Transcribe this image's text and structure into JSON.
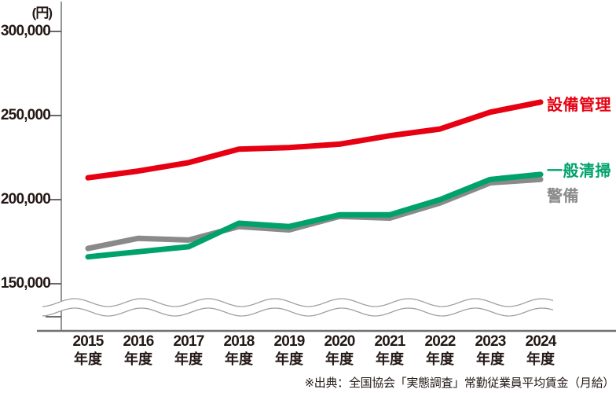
{
  "chart": {
    "unit_label": "(円)",
    "source_note": "※出典：全国協会「実態調査」常勤従業員平均賃金（月給）"
  },
  "chart_data": {
    "type": "line",
    "title": "",
    "ylabel": "円",
    "xlabel": "年度",
    "categories": [
      "2015",
      "2016",
      "2017",
      "2018",
      "2019",
      "2020",
      "2021",
      "2022",
      "2023",
      "2024"
    ],
    "category_suffix": "年度",
    "yticks": [
      150000,
      200000,
      250000,
      300000
    ],
    "ytick_labels": [
      "150,000",
      "200,000",
      "250,000",
      "300,000"
    ],
    "ylim": [
      150000,
      300000
    ],
    "axis_break": true,
    "grid": false,
    "legend_position": "right-end-labels",
    "series": [
      {
        "name": "設備管理",
        "color": "#e60012",
        "values": [
          213000,
          217000,
          222000,
          230000,
          231000,
          233000,
          238000,
          242000,
          252000,
          258000
        ]
      },
      {
        "name": "一般清掃",
        "color": "#00a26c",
        "values": [
          166000,
          169000,
          172000,
          186000,
          184000,
          191000,
          191000,
          200000,
          212000,
          215000
        ]
      },
      {
        "name": "警備",
        "color": "#8a8a8a",
        "values": [
          171000,
          177000,
          176000,
          184000,
          182000,
          190000,
          189000,
          198000,
          210000,
          212000
        ]
      }
    ],
    "colors": {
      "axis": "#898989",
      "tick": "#595757",
      "baseline": "#727171",
      "wave": "#9fa0a0",
      "text": "#231815"
    }
  }
}
